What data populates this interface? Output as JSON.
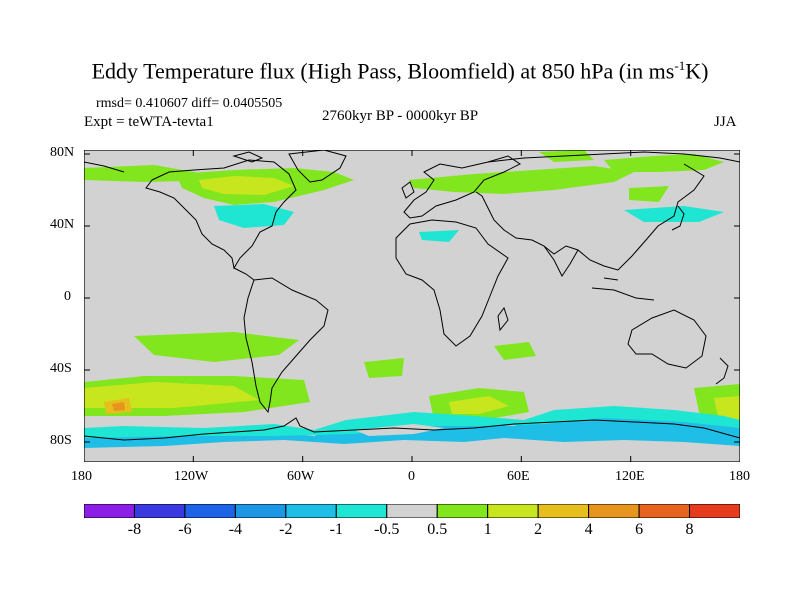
{
  "title": {
    "main": "Eddy Temperature flux (High Pass, Bloomfield) at 850 hPa (in ms",
    "sup": "-1",
    "end": "K)"
  },
  "stats": "rmsd= 0.410607 diff= 0.0405505",
  "experiment": "Expt = teWTA-tevta1",
  "period": "2760kyr BP - 0000kyr BP",
  "season": "JJA",
  "lat_ticks": [
    "80N",
    "40N",
    "0",
    "40S",
    "80S"
  ],
  "lon_ticks": [
    "180",
    "120W",
    "60W",
    "0",
    "60E",
    "120E",
    "180"
  ],
  "colorbar": {
    "labels": [
      "-8",
      "-6",
      "-4",
      "-2",
      "-1",
      "-0.5",
      "0.5",
      "1",
      "2",
      "4",
      "6",
      "8"
    ],
    "colors": [
      "#8c1fe6",
      "#3a3ae0",
      "#1e64e6",
      "#1e96e6",
      "#1ebee6",
      "#1ee6d2",
      "#d2d2d2",
      "#82e61e",
      "#c8e61e",
      "#e6be1e",
      "#e6961e",
      "#e6641e",
      "#e63c1e"
    ]
  },
  "field_colors": {
    "background": "#d2d2d2",
    "neg_small": "#1ee6d2",
    "neg_mid": "#1ebee6",
    "pos_small": "#82e61e",
    "pos_mid": "#c8e61e",
    "pos_high": "#e6be1e",
    "pos_max": "#e6961e"
  }
}
